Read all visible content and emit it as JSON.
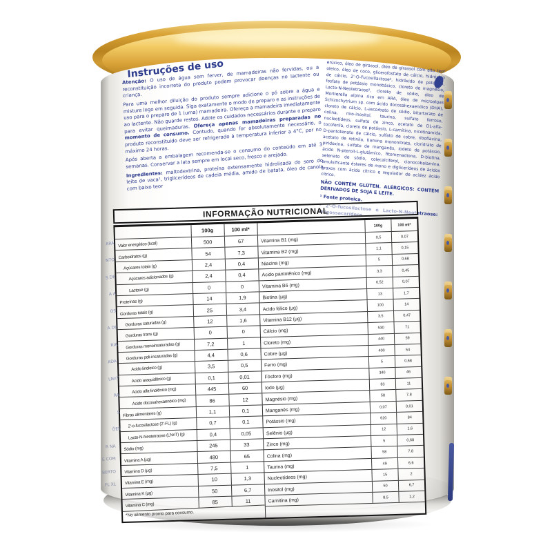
{
  "can": {
    "left_panel": {
      "title": "Instruções de uso",
      "paragraphs": [
        {
          "segments": [
            {
              "bold": true,
              "text": "Atenção: "
            },
            {
              "bold": false,
              "text": "O uso de água sem ferver, de mamadeiras não fervidas, ou a reconstituição incorreta do produto podem provocar doenças no lactente ou criança."
            }
          ]
        },
        {
          "segments": [
            {
              "bold": false,
              "text": "Para uma melhor diluição do produto sempre adicione o pó sobre a água e misture logo em seguida. Siga exatamente o modo de preparo e as instruções de uso para o preparo de 1 (uma) mamadeira. Ofereça a mamadeira imediatamente ao lactente. Não guarde restos. Adote os cuidados necessários durante o preparo para evitar queimaduras. "
            },
            {
              "bold": true,
              "text": "Ofereça apenas mamadeiras preparadas no momento de consumo. "
            },
            {
              "bold": false,
              "text": "Contudo, quando for absolutamente necessário, o produto reconstituído deve ser refrigerado à temperatura inferior a 4°C, por no máximo 24 horas."
            }
          ]
        },
        {
          "segments": [
            {
              "bold": false,
              "text": "Após aberta a embalagem recomenda-se o consumo do conteúdo em até 3 semanas. Conservar a lata sempre em local seco, fresco e arejado."
            }
          ]
        },
        {
          "segments": [
            {
              "bold": true,
              "text": "Ingredientes: "
            },
            {
              "bold": false,
              "text": "maltodextrina, proteína extensamente hidrolisada do soro do leite de vaca¹, triglicerídeos de cadeia média, amido de batata, óleo de canola com baixo teor"
            }
          ]
        }
      ]
    },
    "right_panel": {
      "paragraphs": [
        {
          "bold": false,
          "text": "erúcico, óleo de girassol, óleo de girassol com alto teor oleico, óleo de coco, glicerofosfato de cálcio, hidróxido de cálcio, 2'-O-Fucosillactose², hidróxido de potássio, fosfato de potássio monobásico, cloreto de magnésio, Lacto-N-Neotetraose², cloreto de sódio, óleo de Mortierella alpina rico em ARA, óleo de microalgas Schizochytrium sp. com ácido docosahexaenóico (DHA), cloreto de cálcio, L-ascorbato de sódio, bitartarato de colina, mio-inositol, taurina, sulfato ferroso, nucleotídeos, sulfato de zinco, acetato de DL-alfa-tocoferila, cloreto de potássio, L-carnitina, nicotinamida, D-pantotenato de cálcio, sulfato de cobre, riboflavina, acetato de retinila, tiamina mononitrato, cloridrato de piridoxina, sulfato de manganês, iodeto de potássio, ácido N-pteroil-L-glutâmico, fitomenadiona, D-biotina, selenato de sódio, colecalciferol, cianocobalamina, emulsificante ésteres de mono e diglicerídeos de ácidos graxos com ácido cítrico e regulador de acidez ácido cítrico."
        },
        {
          "bold": true,
          "text": "NÃO CONTÉM GLÚTEN. ALÉRGICOS: CONTÉM DERIVADOS DE SOJA E LEITE."
        },
        {
          "bold": true,
          "text": "¹ Fonte proteica."
        },
        {
          "bold": true,
          "text": "² 2'-O-fucosilactose e Lacto-N-Neotetraose: Oligossacarídeos"
        }
      ]
    },
    "nutrition_table": {
      "title": "INFORMAÇÃO NUTRICIONAL",
      "col_100g": "100g",
      "col_100ml": "100 ml*",
      "footnote": "*No alimento pronto para consumo.",
      "left_rows": [
        {
          "label": "Valor energético (kcal)",
          "indent": 0,
          "per100g": "500",
          "per100ml": "67"
        },
        {
          "label": "Carboidratos (g)",
          "indent": 0,
          "per100g": "54",
          "per100ml": "7,3"
        },
        {
          "label": "Açúcares totais (g)",
          "indent": 1,
          "per100g": "2,4",
          "per100ml": "0,4"
        },
        {
          "label": "Açúcares adicionados (g)",
          "indent": 2,
          "per100g": "2,4",
          "per100ml": "0,4"
        },
        {
          "label": "Lactose (g)",
          "indent": 2,
          "per100g": "0",
          "per100ml": "0"
        },
        {
          "label": "Proteínas (g)",
          "indent": 0,
          "per100g": "14",
          "per100ml": "1,9"
        },
        {
          "label": "Gorduras totais (g)",
          "indent": 0,
          "per100g": "25",
          "per100ml": "3,4"
        },
        {
          "label": "Gorduras saturadas (g)",
          "indent": 1,
          "per100g": "12",
          "per100ml": "1,6"
        },
        {
          "label": "Gorduras trans (g)",
          "indent": 1,
          "per100g": "0",
          "per100ml": "0"
        },
        {
          "label": "Gorduras monoinsaturadas (g)",
          "indent": 1,
          "per100g": "7,2",
          "per100ml": "1"
        },
        {
          "label": "Gorduras poli-insaturadas (g)",
          "indent": 1,
          "per100g": "4,4",
          "per100ml": "0,6"
        },
        {
          "label": "Ácido linoleico (g)",
          "indent": 2,
          "per100g": "3,5",
          "per100ml": "0,5"
        },
        {
          "label": "Ácido araquidônico (g)",
          "indent": 2,
          "per100g": "0,1",
          "per100ml": "0,01"
        },
        {
          "label": "Ácido alfa-linolênico (mg)",
          "indent": 2,
          "per100g": "445",
          "per100ml": "60"
        },
        {
          "label": "Ácido docosahexaenóico (mg)",
          "indent": 2,
          "per100g": "86",
          "per100ml": "12"
        },
        {
          "label": "Fibras alimentares (g)",
          "indent": 0,
          "per100g": "1,1",
          "per100ml": "0,1"
        },
        {
          "label": "2'-o-fucosilactose (2'-FL) (g)",
          "indent": 1,
          "per100g": "0,7",
          "per100ml": "0,1"
        },
        {
          "label": "Lacto-N-Neotetraose (LNnT) (g)",
          "indent": 1,
          "per100g": "0,4",
          "per100ml": "0,05"
        },
        {
          "label": "Sódio (mg)",
          "indent": 0,
          "per100g": "245",
          "per100ml": "33"
        },
        {
          "label": "Vitamina A (µg)",
          "indent": 0,
          "per100g": "480",
          "per100ml": "65"
        },
        {
          "label": "Vitamina D (µg)",
          "indent": 0,
          "per100g": "7,5",
          "per100ml": "1"
        },
        {
          "label": "Vitamina E (mg)",
          "indent": 0,
          "per100g": "10",
          "per100ml": "1,3"
        },
        {
          "label": "Vitamina K (µg)",
          "indent": 0,
          "per100g": "50",
          "per100ml": "6,7"
        },
        {
          "label": "Vitamina C (mg)",
          "indent": 0,
          "per100g": "85",
          "per100ml": "11"
        }
      ],
      "right_rows": [
        {
          "label": "Vitamina B1 (mg)",
          "indent": 0,
          "per100g": "0,5",
          "per100ml": "0,07"
        },
        {
          "label": "Vitamina B2 (mg)",
          "indent": 0,
          "per100g": "1,1",
          "per100ml": "0,15"
        },
        {
          "label": "Niacina (mg)",
          "indent": 0,
          "per100g": "5",
          "per100ml": "0,68"
        },
        {
          "label": "Ácido pantotênico (mg)",
          "indent": 0,
          "per100g": "3,3",
          "per100ml": "0,45"
        },
        {
          "label": "Vitamina B6 (mg)",
          "indent": 0,
          "per100g": "0,52",
          "per100ml": "0,07"
        },
        {
          "label": "Biotina (µg)",
          "indent": 0,
          "per100g": "13",
          "per100ml": "1,7"
        },
        {
          "label": "Ácido fólico (µg)",
          "indent": 0,
          "per100g": "100",
          "per100ml": "14"
        },
        {
          "label": "Vitamina B12 (µg)",
          "indent": 0,
          "per100g": "3,5",
          "per100ml": "0,47"
        },
        {
          "label": "Cálcio (mg)",
          "indent": 0,
          "per100g": "530",
          "per100ml": "71"
        },
        {
          "label": "Cloreto (mg)",
          "indent": 0,
          "per100g": "440",
          "per100ml": "59"
        },
        {
          "label": "Cobre (µg)",
          "indent": 0,
          "per100g": "400",
          "per100ml": "54"
        },
        {
          "label": "Ferro (mg)",
          "indent": 0,
          "per100g": "5",
          "per100ml": "0,68"
        },
        {
          "label": "Fósforo (mg)",
          "indent": 0,
          "per100g": "340",
          "per100ml": "46"
        },
        {
          "label": "Iodo (µg)",
          "indent": 0,
          "per100g": "83",
          "per100ml": "11"
        },
        {
          "label": "Magnésio (mg)",
          "indent": 0,
          "per100g": "58",
          "per100ml": "7,8"
        },
        {
          "label": "Manganês (mg)",
          "indent": 0,
          "per100g": "0,07",
          "per100ml": "0,01"
        },
        {
          "label": "Potássio (mg)",
          "indent": 0,
          "per100g": "620",
          "per100ml": "84"
        },
        {
          "label": "Selênio (µg)",
          "indent": 0,
          "per100g": "12",
          "per100ml": "1,6"
        },
        {
          "label": "Zinco (mg)",
          "indent": 0,
          "per100g": "5",
          "per100ml": "0,68"
        },
        {
          "label": "Colina (mg)",
          "indent": 0,
          "per100g": "58",
          "per100ml": "7,8"
        },
        {
          "label": "Taurina (mg)",
          "indent": 0,
          "per100g": "49",
          "per100ml": "6,6"
        },
        {
          "label": "Nucleotídeos (mg)",
          "indent": 0,
          "per100g": "15",
          "per100ml": "2"
        },
        {
          "label": "Inositol (mg)",
          "indent": 0,
          "per100g": "50",
          "per100ml": "6,7"
        },
        {
          "label": "Carnitina (mg)",
          "indent": 0,
          "per100g": "8,5",
          "per100ml": "1,2"
        }
      ]
    },
    "edge_fragments": {
      "left_top": [
        "ARA",
        "NTO",
        "S DE",
        "A A",
        "OS",
        "A DE",
        "RIA",
        "ADA.",
        "LNnT",
        "RA",
        "S",
        "ÕES"
      ],
      "left_bottom": [
        "R NA",
        "E COM",
        "BERTO",
        "FL XL"
      ],
      "right_motifs": [
        "label-motif-fragment",
        "label-motif-fragment",
        "label-motif-fragment",
        "label-motif-fragment",
        "label-motif-fragment",
        "label-motif-fragment",
        "label-motif-fragment"
      ]
    },
    "colors": {
      "lid_gold": "#c8922d",
      "text_navy": "#2b3a8c",
      "table_ink": "#1c1c1c",
      "rim_silver": "#8f8e8b"
    }
  }
}
